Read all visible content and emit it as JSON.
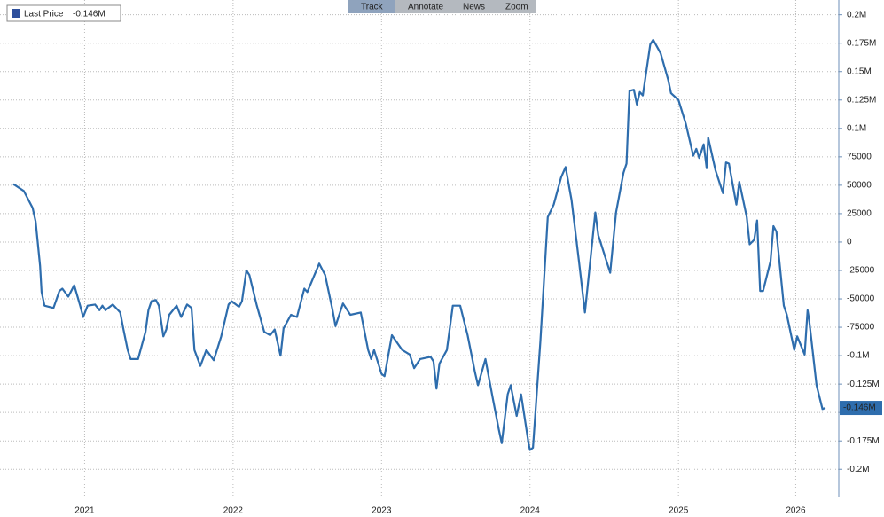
{
  "chart_data": {
    "type": "line",
    "toolbar": [
      "Track",
      "Annotate",
      "News",
      "Zoom"
    ],
    "series": [
      {
        "name": "Last Price",
        "color": "#2e6dad",
        "last_label": {
          "value": -146000,
          "label": "-0.146M"
        },
        "x": [
          2021.02,
          2021.09,
          2021.15,
          2021.17,
          2021.2,
          2021.21,
          2021.23,
          2021.29,
          2021.33,
          2021.35,
          2021.39,
          2021.43,
          2021.47,
          2021.49,
          2021.52,
          2021.57,
          2021.6,
          2021.62,
          2021.64,
          2021.69,
          2021.74,
          2021.76,
          2021.79,
          2021.81,
          2021.86,
          2021.91,
          2021.93,
          2021.95,
          2021.98,
          2022.0,
          2022.03,
          2022.05,
          2022.07,
          2022.12,
          2022.15,
          2022.19,
          2022.22,
          2022.24,
          2022.28,
          2022.32,
          2022.37,
          2022.42,
          2022.47,
          2022.49,
          2022.54,
          2022.56,
          2022.59,
          2022.61,
          2022.66,
          2022.71,
          2022.75,
          2022.78,
          2022.82,
          2022.84,
          2022.89,
          2022.93,
          2022.98,
          2023.0,
          2023.08,
          2023.12,
          2023.17,
          2023.19,
          2023.24,
          2023.29,
          2023.36,
          2023.41,
          2023.43,
          2023.45,
          2023.5,
          2023.52,
          2023.57,
          2023.64,
          2023.69,
          2023.72,
          2023.76,
          2023.83,
          2023.85,
          2023.87,
          2023.89,
          2023.94,
          2023.98,
          2024.03,
          2024.08,
          2024.13,
          2024.15,
          2024.2,
          2024.25,
          2024.29,
          2024.31,
          2024.35,
          2024.37,
          2024.41,
          2024.44,
          2024.49,
          2024.5,
          2024.52,
          2024.57,
          2024.62,
          2024.66,
          2024.71,
          2024.74,
          2024.78,
          2024.83,
          2024.87,
          2024.94,
          2024.96,
          2025.04,
          2025.08,
          2025.13,
          2025.15,
          2025.17,
          2025.2,
          2025.22,
          2025.24,
          2025.26,
          2025.31,
          2025.33,
          2025.38,
          2025.43,
          2025.45,
          2025.5,
          2025.55,
          2025.6,
          2025.62,
          2025.64,
          2025.67,
          2025.69,
          2025.7,
          2025.75,
          2025.8,
          2025.82,
          2025.84,
          2025.89,
          2025.91,
          2025.96,
          2025.98,
          2026.01,
          2026.03,
          2026.05,
          2026.07,
          2026.12,
          2026.14,
          2026.16,
          2026.21,
          2026.23,
          2026.28,
          2026.3,
          2026.35,
          2026.37,
          2026.38,
          2026.43,
          2026.47,
          2026.49
        ],
        "values": [
          51000,
          45000,
          30000,
          18000,
          -21000,
          -44000,
          -56000,
          -58000,
          -43000,
          -41000,
          -48000,
          -38000,
          -56000,
          -66000,
          -56000,
          -55000,
          -60000,
          -56000,
          -60000,
          -55000,
          -62000,
          -76000,
          -95000,
          -103000,
          -103000,
          -79000,
          -60000,
          -52000,
          -51000,
          -56000,
          -83000,
          -77000,
          -64000,
          -56000,
          -66000,
          -55000,
          -58000,
          -95000,
          -109000,
          -95000,
          -104000,
          -83000,
          -55000,
          -52000,
          -57000,
          -52000,
          -25000,
          -29000,
          -56000,
          -79000,
          -82000,
          -77000,
          -100000,
          -76000,
          -64000,
          -66000,
          -41000,
          -44000,
          -19000,
          -29000,
          -60000,
          -74000,
          -54000,
          -64000,
          -62000,
          -95000,
          -103000,
          -95000,
          -116000,
          -118000,
          -82000,
          -95000,
          -99000,
          -111000,
          -103000,
          -101000,
          -105000,
          -129000,
          -107000,
          -95000,
          -56000,
          -56000,
          -82000,
          -115000,
          -126000,
          -103000,
          -138000,
          -165000,
          -177000,
          -134000,
          -126000,
          -153000,
          -134000,
          -177000,
          -183000,
          -181000,
          -87000,
          22000,
          33000,
          57000,
          66000,
          37000,
          -17000,
          -62000,
          26000,
          6000,
          -27000,
          26000,
          61000,
          69000,
          133000,
          134000,
          121000,
          132000,
          129000,
          174000,
          178000,
          166000,
          143000,
          131000,
          125000,
          104000,
          76000,
          82000,
          74000,
          86000,
          65000,
          92000,
          63000,
          43000,
          70000,
          69000,
          33000,
          53000,
          22000,
          -2000,
          2000,
          19000,
          -43000,
          -43000,
          -17000,
          14000,
          9000,
          -56000,
          -64000,
          -95000,
          -83000,
          -99000,
          -60000,
          -68000,
          -126000,
          -147000,
          -146000
        ]
      }
    ],
    "xlim": [
      2020.93,
      2026.58
    ],
    "xticks": [
      {
        "value": 2021.5,
        "label": "2021"
      },
      {
        "value": 2022.5,
        "label": "2022"
      },
      {
        "value": 2023.5,
        "label": "2023"
      },
      {
        "value": 2024.5,
        "label": "2024"
      },
      {
        "value": 2025.5,
        "label": "2025"
      },
      {
        "value": 2026.29,
        "label": "2026"
      }
    ],
    "ylim": [
      -224000,
      213000
    ],
    "yticks": [
      {
        "value": 200000,
        "label": "0.2M"
      },
      {
        "value": 175000,
        "label": "0.175M"
      },
      {
        "value": 150000,
        "label": "0.15M"
      },
      {
        "value": 125000,
        "label": "0.125M"
      },
      {
        "value": 100000,
        "label": "0.1M"
      },
      75000,
      50000,
      25000,
      0,
      -25000,
      -50000,
      -75000,
      {
        "value": -100000,
        "label": "-0.1M"
      },
      {
        "value": -125000,
        "label": "-0.125M"
      },
      {
        "value": -150000,
        "label": "-0.15M"
      },
      {
        "value": -175000,
        "label": "-0.175M"
      },
      {
        "value": -200000,
        "label": "-0.2M"
      }
    ],
    "grid": true
  }
}
